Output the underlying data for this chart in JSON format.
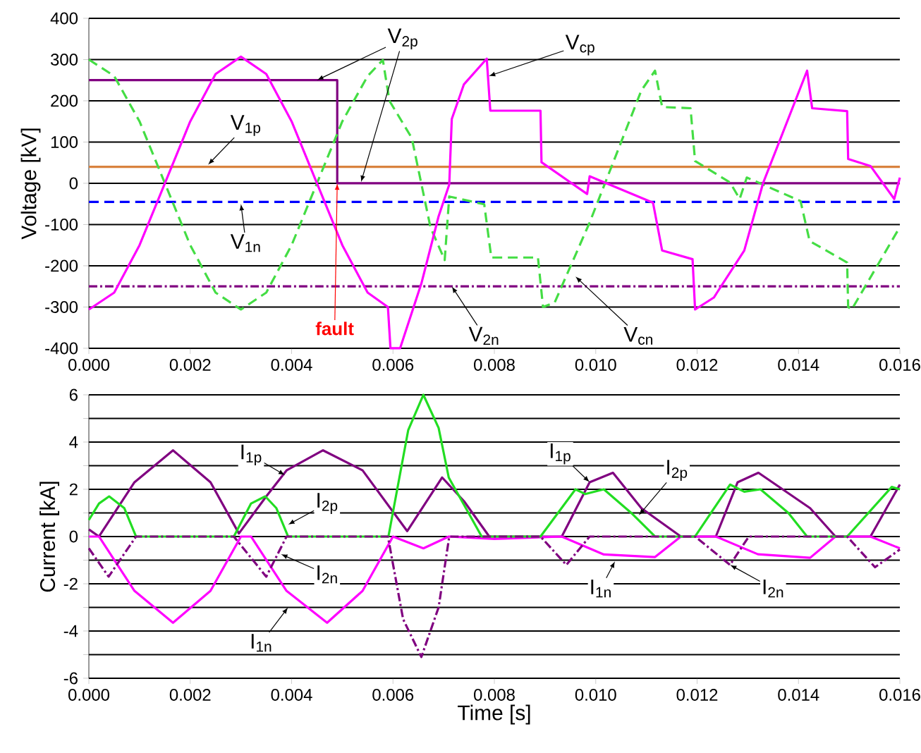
{
  "chart_data": [
    {
      "type": "line",
      "ylabel": "Voltage [kV]",
      "xlim": [
        0,
        0.016
      ],
      "ylim": [
        -400,
        400
      ],
      "xticks": [
        {
          "value": 0,
          "label": "0.000"
        },
        {
          "value": 0.002,
          "label": "0.002"
        },
        {
          "value": 0.004,
          "label": "0.004"
        },
        {
          "value": 0.006,
          "label": "0.006"
        },
        {
          "value": 0.008,
          "label": "0.008"
        },
        {
          "value": 0.01,
          "label": "0.010"
        },
        {
          "value": 0.012,
          "label": "0.012"
        },
        {
          "value": 0.014,
          "label": "0.014"
        },
        {
          "value": 0.016,
          "label": "0.016"
        }
      ],
      "yticks": [
        400,
        300,
        200,
        100,
        0,
        -100,
        -200,
        -300,
        -400
      ],
      "grid": "y",
      "marker": "none",
      "annotations": [
        {
          "text": "fault",
          "x": 0.0049,
          "y": 0
        }
      ],
      "series": [
        {
          "name": "V$_{1p}$",
          "color": "#d9823f",
          "line_style": "solid",
          "x": [
            0,
            0.016
          ],
          "values": [
            40,
            40
          ]
        },
        {
          "name": "V$_{1n}$",
          "color": "#0000ff",
          "line_style": "dashed",
          "x": [
            0,
            0.016
          ],
          "values": [
            -45,
            -45
          ]
        },
        {
          "name": "V$_{2p}$",
          "color": "#800080",
          "line_style": "solid",
          "x": [
            0,
            0.0049,
            0.0049,
            0.016
          ],
          "values": [
            250,
            250,
            0,
            0
          ]
        },
        {
          "name": "V$_{2n}$",
          "color": "#800080",
          "line_style": "dashdot",
          "x": [
            0,
            0.016
          ],
          "values": [
            -250,
            -250
          ]
        },
        {
          "name": "V$_{cn}$",
          "color": "#44dd44",
          "line_style": "dashed",
          "x": [
            0,
            0.0005,
            0.001,
            0.0015,
            0.002,
            0.0025,
            0.003,
            0.0035,
            0.004,
            0.0045,
            0.005,
            0.0055,
            0.0058,
            0.00593,
            0.00637,
            0.00674,
            0.00702,
            0.00711,
            0.0078,
            0.00794,
            0.00886,
            0.00896,
            0.00919,
            0.00988,
            0.0109,
            0.01117,
            0.01131,
            0.01187,
            0.01196,
            0.01265,
            0.01284,
            0.01298,
            0.01404,
            0.01422,
            0.01496,
            0.01498,
            0.01505,
            0.016
          ],
          "values": [
            300,
            260,
            150,
            0,
            -150,
            -265,
            -306,
            -265,
            -150,
            0,
            150,
            260,
            299,
            200,
            110,
            -107,
            -186,
            -32,
            -51,
            -180,
            -180,
            -300,
            -289,
            -95,
            225,
            273,
            185,
            182,
            54,
            2,
            -38,
            14,
            -43,
            -140,
            -192,
            -300,
            -306,
            -106
          ]
        },
        {
          "name": "V$_{cp}$",
          "color": "#ff00ff",
          "line_style": "solid",
          "x": [
            0,
            0.0005,
            0.001,
            0.0015,
            0.002,
            0.0025,
            0.003,
            0.0035,
            0.004,
            0.0045,
            0.005,
            0.0055,
            0.0059,
            0.00595,
            0.006,
            0.00614,
            0.00656,
            0.0069,
            0.00711,
            0.00716,
            0.0074,
            0.00785,
            0.00792,
            0.00891,
            0.00893,
            0.00983,
            0.00988,
            0.01113,
            0.01131,
            0.01191,
            0.01196,
            0.01233,
            0.01293,
            0.0133,
            0.01417,
            0.01427,
            0.01496,
            0.01498,
            0.01542,
            0.01589,
            0.016
          ],
          "values": [
            -306,
            -265,
            -150,
            0,
            150,
            265,
            307,
            265,
            150,
            0,
            -150,
            -265,
            -300,
            -400,
            -400,
            -400,
            -243,
            -80,
            -3,
            156,
            240,
            302,
            176,
            176,
            51,
            -26,
            17,
            -47,
            -163,
            -184,
            -306,
            -277,
            -163,
            0,
            273,
            182,
            175,
            59,
            42,
            -38,
            14
          ]
        }
      ]
    },
    {
      "type": "line",
      "xlabel": "Time [s]",
      "ylabel": "Current [kA]",
      "xlim": [
        0,
        0.016
      ],
      "ylim": [
        -6,
        6
      ],
      "xticks": [
        {
          "value": 0,
          "label": "0.000"
        },
        {
          "value": 0.002,
          "label": "0.002"
        },
        {
          "value": 0.004,
          "label": "0.004"
        },
        {
          "value": 0.006,
          "label": "0.006"
        },
        {
          "value": 0.008,
          "label": "0.008"
        },
        {
          "value": 0.01,
          "label": "0.010"
        },
        {
          "value": 0.012,
          "label": "0.012"
        },
        {
          "value": 0.014,
          "label": "0.014"
        },
        {
          "value": 0.016,
          "label": "0.016"
        }
      ],
      "yticks": [
        6,
        {
          "value": 5,
          "label": null
        },
        4,
        {
          "value": 3,
          "label": null
        },
        2,
        {
          "value": 1,
          "label": null
        },
        0,
        {
          "value": -1,
          "label": null
        },
        -2,
        {
          "value": -3,
          "label": null
        },
        -4,
        {
          "value": -5,
          "label": null
        },
        -6
      ],
      "grid": "y",
      "marker": "none",
      "series": [
        {
          "name": "I$_{1p}$",
          "color": "#800080",
          "line_style": "solid",
          "x": [
            0,
            0.0002,
            0.0009,
            0.00166,
            0.0024,
            0.00296,
            0.0035,
            0.0039,
            0.00462,
            0.0054,
            0.00628,
            0.00697,
            0.0074,
            0.0079,
            0.00933,
            0.00988,
            0.01034,
            0.0109,
            0.01168,
            0.01237,
            0.0128,
            0.01321,
            0.01423,
            0.01473,
            0.01542,
            0.016
          ],
          "values": [
            0.3,
            0,
            2.3,
            3.65,
            2.3,
            0.13,
            1.7,
            2.8,
            3.65,
            2.8,
            0.23,
            2.5,
            1.5,
            0,
            0,
            2.3,
            2.7,
            1.2,
            0,
            0,
            2.3,
            2.7,
            1.2,
            0,
            0,
            2.2
          ]
        },
        {
          "name": "I$_{1n}$",
          "color": "#ff00ff",
          "line_style": "solid",
          "x": [
            0,
            0.0002,
            0.0009,
            0.00166,
            0.0024,
            0.003,
            0.0032,
            0.0039,
            0.0047,
            0.0054,
            0.006,
            0.0066,
            0.0071,
            0.008,
            0.00933,
            0.01016,
            0.01117,
            0.01168,
            0.01237,
            0.0132,
            0.01423,
            0.01473,
            0.01542,
            0.016
          ],
          "values": [
            0,
            0,
            -2.3,
            -3.65,
            -2.3,
            0,
            0,
            -2.3,
            -3.65,
            -2.3,
            0,
            -0.5,
            0,
            -0.1,
            0,
            -0.76,
            -0.87,
            0,
            0,
            -0.75,
            -0.9,
            0,
            0,
            -0.5
          ]
        },
        {
          "name": "I$_{2p}$",
          "color": "#22dd22",
          "line_style": "solid",
          "x": [
            0,
            0.0002,
            0.0004,
            0.0007,
            0.00093,
            0.00286,
            0.0032,
            0.00348,
            0.0037,
            0.00393,
            0.00591,
            0.0063,
            0.0066,
            0.0069,
            0.0071,
            0.00775,
            0.00891,
            0.0096,
            0.00979,
            0.01016,
            0.0107,
            0.01117,
            0.01196,
            0.01265,
            0.01293,
            0.01325,
            0.0138,
            0.01417,
            0.01496,
            0.01584,
            0.016
          ],
          "values": [
            0.7,
            1.4,
            1.7,
            1.2,
            0,
            0,
            1.4,
            1.7,
            1.2,
            0,
            0,
            4.5,
            6,
            4.6,
            2.5,
            0,
            0,
            2,
            1.8,
            2,
            1,
            0,
            0,
            2.2,
            1.9,
            2,
            1,
            0,
            0,
            2.1,
            2
          ]
        },
        {
          "name": "I$_{2n}$",
          "color": "#800080",
          "line_style": "dashdot",
          "x": [
            0,
            0.00039,
            0.00093,
            0.00286,
            0.0035,
            0.0039,
            0.0059,
            0.0062,
            0.00656,
            0.0069,
            0.00711,
            0.00891,
            0.00942,
            0.00988,
            0.01196,
            0.01265,
            0.01302,
            0.01496,
            0.01551,
            0.016
          ],
          "values": [
            -0.5,
            -1.7,
            0,
            0,
            -1.7,
            0,
            0,
            -3.5,
            -5.1,
            -3,
            0,
            0,
            -1.2,
            0,
            0,
            -1.2,
            0,
            0,
            -1.3,
            -0.55
          ]
        }
      ]
    }
  ]
}
